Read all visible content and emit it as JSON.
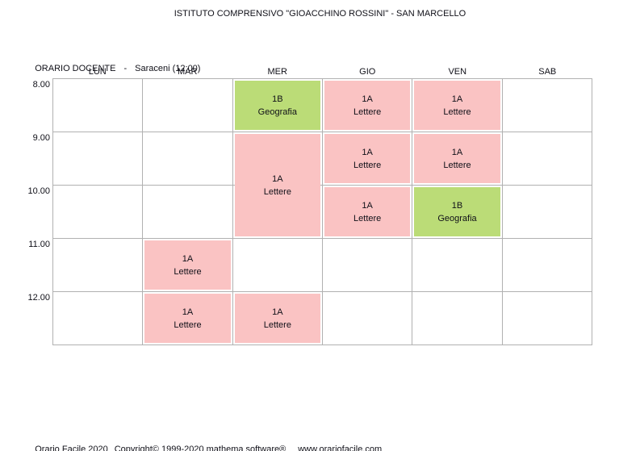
{
  "page": {
    "title": "ISTITUTO COMPRENSIVO \"GIOACCHINO ROSSINI\" - SAN MARCELLO"
  },
  "schedule_header": {
    "label": "ORARIO DOCENTE",
    "separator": "-",
    "teacher": "Saraceni (12:00)"
  },
  "timetable": {
    "days": [
      "LUN",
      "MAR",
      "MER",
      "GIO",
      "VEN",
      "SAB"
    ],
    "times": [
      "8.00",
      "9.00",
      "10.00",
      "11.00",
      "12.00"
    ],
    "colors": {
      "lesson_pink": "#fac3c3",
      "lesson_green": "#bbdc77",
      "grid_line": "#b1b1b1"
    },
    "lessons": [
      {
        "day": "MER",
        "time": "8.00",
        "col": 2,
        "row": 0,
        "rowspan": 1,
        "class_name": "1B",
        "subject": "Geografia",
        "color": "green"
      },
      {
        "day": "GIO",
        "time": "8.00",
        "col": 3,
        "row": 0,
        "rowspan": 1,
        "class_name": "1A",
        "subject": "Lettere",
        "color": "pink"
      },
      {
        "day": "VEN",
        "time": "8.00",
        "col": 4,
        "row": 0,
        "rowspan": 1,
        "class_name": "1A",
        "subject": "Lettere",
        "color": "pink"
      },
      {
        "day": "MER",
        "time": "9.00",
        "col": 2,
        "row": 1,
        "rowspan": 2,
        "class_name": "1A",
        "subject": "Lettere",
        "color": "pink"
      },
      {
        "day": "GIO",
        "time": "9.00",
        "col": 3,
        "row": 1,
        "rowspan": 1,
        "class_name": "1A",
        "subject": "Lettere",
        "color": "pink"
      },
      {
        "day": "VEN",
        "time": "9.00",
        "col": 4,
        "row": 1,
        "rowspan": 1,
        "class_name": "1A",
        "subject": "Lettere",
        "color": "pink"
      },
      {
        "day": "GIO",
        "time": "10.00",
        "col": 3,
        "row": 2,
        "rowspan": 1,
        "class_name": "1A",
        "subject": "Lettere",
        "color": "pink"
      },
      {
        "day": "VEN",
        "time": "10.00",
        "col": 4,
        "row": 2,
        "rowspan": 1,
        "class_name": "1B",
        "subject": "Geografia",
        "color": "green"
      },
      {
        "day": "MAR",
        "time": "11.00",
        "col": 1,
        "row": 3,
        "rowspan": 1,
        "class_name": "1A",
        "subject": "Lettere",
        "color": "pink"
      },
      {
        "day": "MAR",
        "time": "12.00",
        "col": 1,
        "row": 4,
        "rowspan": 1,
        "class_name": "1A",
        "subject": "Lettere",
        "color": "pink"
      },
      {
        "day": "MER",
        "time": "12.00",
        "col": 2,
        "row": 4,
        "rowspan": 1,
        "class_name": "1A",
        "subject": "Lettere",
        "color": "pink"
      }
    ]
  },
  "footer": {
    "app": "Orario Facile 2020",
    "copyright": "Copyright© 1999-2020 mathema software®",
    "website": "www.orariofacile.com"
  }
}
